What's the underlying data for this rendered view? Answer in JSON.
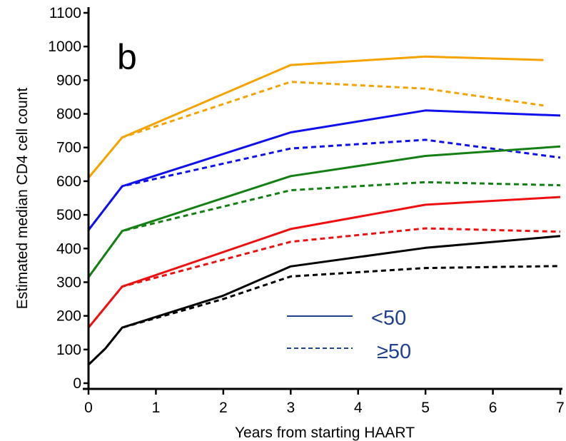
{
  "chart_data": {
    "type": "line",
    "panel_label": "b",
    "xlabel": "Years from starting HAART",
    "ylabel": "Estimated median CD4 cell count",
    "xlim": [
      0,
      7
    ],
    "ylim": [
      0,
      1100
    ],
    "x_ticks": [
      0,
      1,
      2,
      3,
      4,
      5,
      6,
      7
    ],
    "y_ticks": [
      0,
      100,
      200,
      300,
      400,
      500,
      600,
      700,
      800,
      900,
      1000,
      1100
    ],
    "grid": false,
    "legend_position": "lower-center",
    "legend": [
      {
        "label": "<50",
        "style": "solid"
      },
      {
        "label": "≥50",
        "style": "dashed"
      }
    ],
    "legend_color": "#1f3f8f",
    "series": [
      {
        "color": "#f5a300",
        "style": "solid",
        "x": [
          0,
          0.5,
          3,
          5,
          6.75
        ],
        "y": [
          610,
          730,
          945,
          970,
          960
        ]
      },
      {
        "color": "#f5a300",
        "style": "dashed",
        "x": [
          0,
          0.5,
          3,
          5,
          6.75
        ],
        "y": [
          610,
          730,
          895,
          875,
          825
        ]
      },
      {
        "color": "#1010ee",
        "style": "solid",
        "x": [
          0,
          0.5,
          3,
          5,
          7
        ],
        "y": [
          455,
          585,
          745,
          810,
          795
        ]
      },
      {
        "color": "#1010ee",
        "style": "dashed",
        "x": [
          0,
          0.5,
          3,
          5,
          7
        ],
        "y": [
          455,
          585,
          697,
          723,
          670
        ]
      },
      {
        "color": "#148014",
        "style": "solid",
        "x": [
          0,
          0.5,
          3,
          5,
          7
        ],
        "y": [
          315,
          452,
          615,
          675,
          703
        ]
      },
      {
        "color": "#148014",
        "style": "dashed",
        "x": [
          0,
          0.5,
          3,
          5,
          7
        ],
        "y": [
          315,
          452,
          573,
          597,
          588
        ]
      },
      {
        "color": "#ee1010",
        "style": "solid",
        "x": [
          0,
          0.5,
          3,
          5,
          7
        ],
        "y": [
          165,
          287,
          458,
          530,
          553
        ]
      },
      {
        "color": "#ee1010",
        "style": "dashed",
        "x": [
          0,
          0.5,
          3,
          5,
          7
        ],
        "y": [
          165,
          287,
          420,
          460,
          450
        ]
      },
      {
        "color": "#000000",
        "style": "solid",
        "x": [
          0,
          0.25,
          0.5,
          2,
          3,
          5,
          7
        ],
        "y": [
          55,
          103,
          165,
          260,
          347,
          402,
          437
        ]
      },
      {
        "color": "#000000",
        "style": "dashed",
        "x": [
          0,
          0.25,
          0.5,
          2,
          3,
          5,
          7
        ],
        "y": [
          55,
          103,
          165,
          250,
          317,
          342,
          348
        ]
      }
    ]
  }
}
